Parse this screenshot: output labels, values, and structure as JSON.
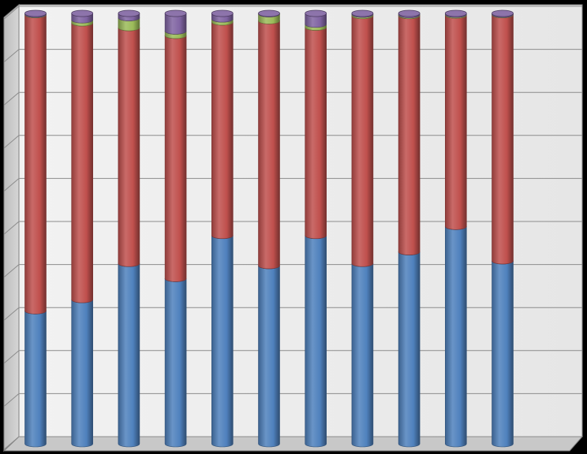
{
  "chart_data": {
    "type": "bar",
    "stacked": true,
    "three_d": true,
    "title": "",
    "xlabel": "",
    "ylabel": "",
    "ylim": [
      0,
      100
    ],
    "grid": true,
    "legend": "none",
    "categories": [
      "",
      "",
      "",
      "",
      "",
      "",
      "",
      "",
      "",
      "",
      ""
    ],
    "series": [
      {
        "color": "#4f81bd",
        "values": [
          30.9,
          33.5,
          41.9,
          38.4,
          48.4,
          41.4,
          48.4,
          41.9,
          44.6,
          50.5,
          42.5
        ]
      },
      {
        "color": "#c0504d",
        "values": [
          68.8,
          64.3,
          54.8,
          56.5,
          49.6,
          56.9,
          48.4,
          57.6,
          54.9,
          49.1,
          57.2
        ]
      },
      {
        "color": "#9bbb59",
        "values": [
          0.1,
          0.7,
          2.3,
          1.0,
          0.7,
          1.6,
          0.7,
          0.3,
          0.2,
          0.2,
          0.1
        ]
      },
      {
        "color": "#8064a2",
        "values": [
          0.2,
          1.5,
          1.0,
          4.1,
          1.3,
          0.1,
          2.5,
          0.2,
          0.3,
          0.2,
          0.2
        ]
      }
    ]
  }
}
